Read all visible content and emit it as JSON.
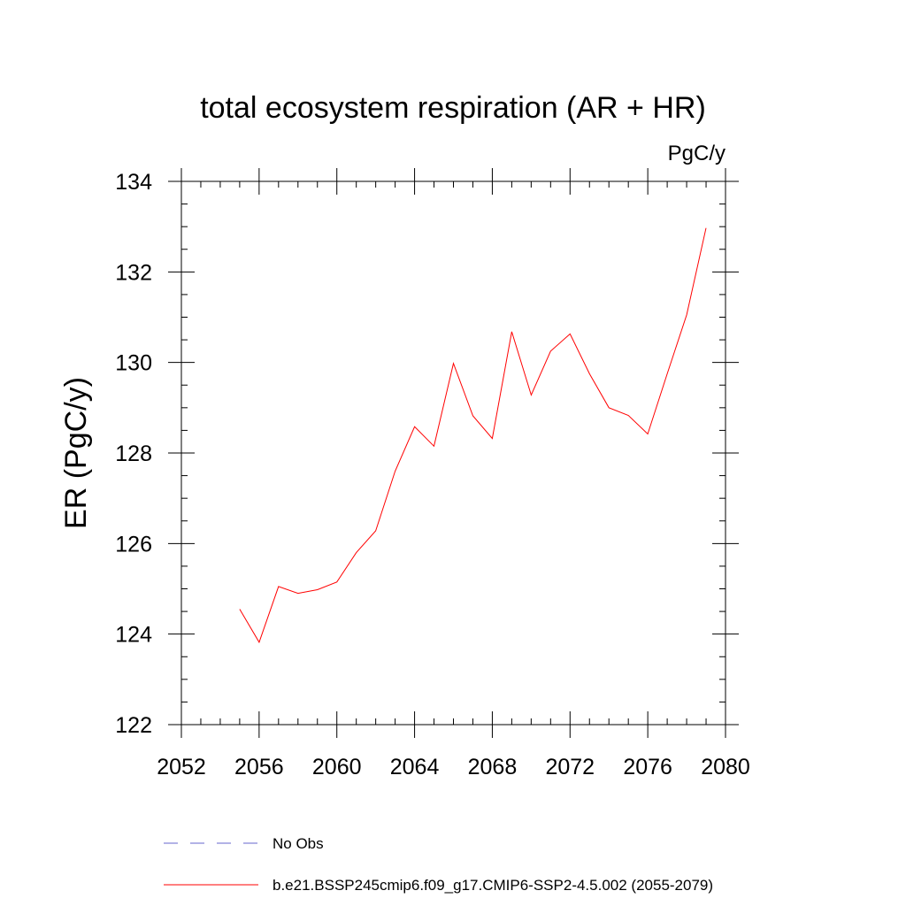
{
  "chart_data": {
    "type": "line",
    "title": "total ecosystem respiration (AR + HR)",
    "units_label": "PgC/y",
    "xlabel": "",
    "ylabel": "ER  (PgC/y)",
    "xlim": [
      2052,
      2080
    ],
    "ylim": [
      122,
      134
    ],
    "x_ticks": [
      2052,
      2056,
      2060,
      2064,
      2068,
      2072,
      2076,
      2080
    ],
    "y_ticks": [
      122,
      124,
      126,
      128,
      130,
      132,
      134
    ],
    "grid": false,
    "series": [
      {
        "name": "b.e21.BSSP245cmip6.f09_g17.CMIP6-SSP2-4.5.002 (2055-2079)",
        "color": "#ff0000",
        "style": "solid",
        "x": [
          2055,
          2056,
          2057,
          2058,
          2059,
          2060,
          2061,
          2062,
          2063,
          2064,
          2065,
          2066,
          2067,
          2068,
          2069,
          2070,
          2071,
          2072,
          2073,
          2074,
          2075,
          2076,
          2077,
          2078,
          2079
        ],
        "values": [
          124.55,
          123.82,
          125.05,
          124.9,
          124.98,
          125.15,
          125.8,
          126.28,
          127.6,
          128.58,
          128.15,
          129.98,
          128.82,
          128.32,
          130.68,
          129.28,
          130.25,
          130.63,
          129.75,
          129.0,
          128.83,
          128.42,
          129.75,
          131.05,
          132.97
        ]
      }
    ],
    "legend": [
      {
        "label": "No Obs",
        "color": "#6666cc",
        "style": "dashed"
      },
      {
        "label": "b.e21.BSSP245cmip6.f09_g17.CMIP6-SSP2-4.5.002 (2055-2079)",
        "color": "#ff0000",
        "style": "solid"
      }
    ]
  }
}
